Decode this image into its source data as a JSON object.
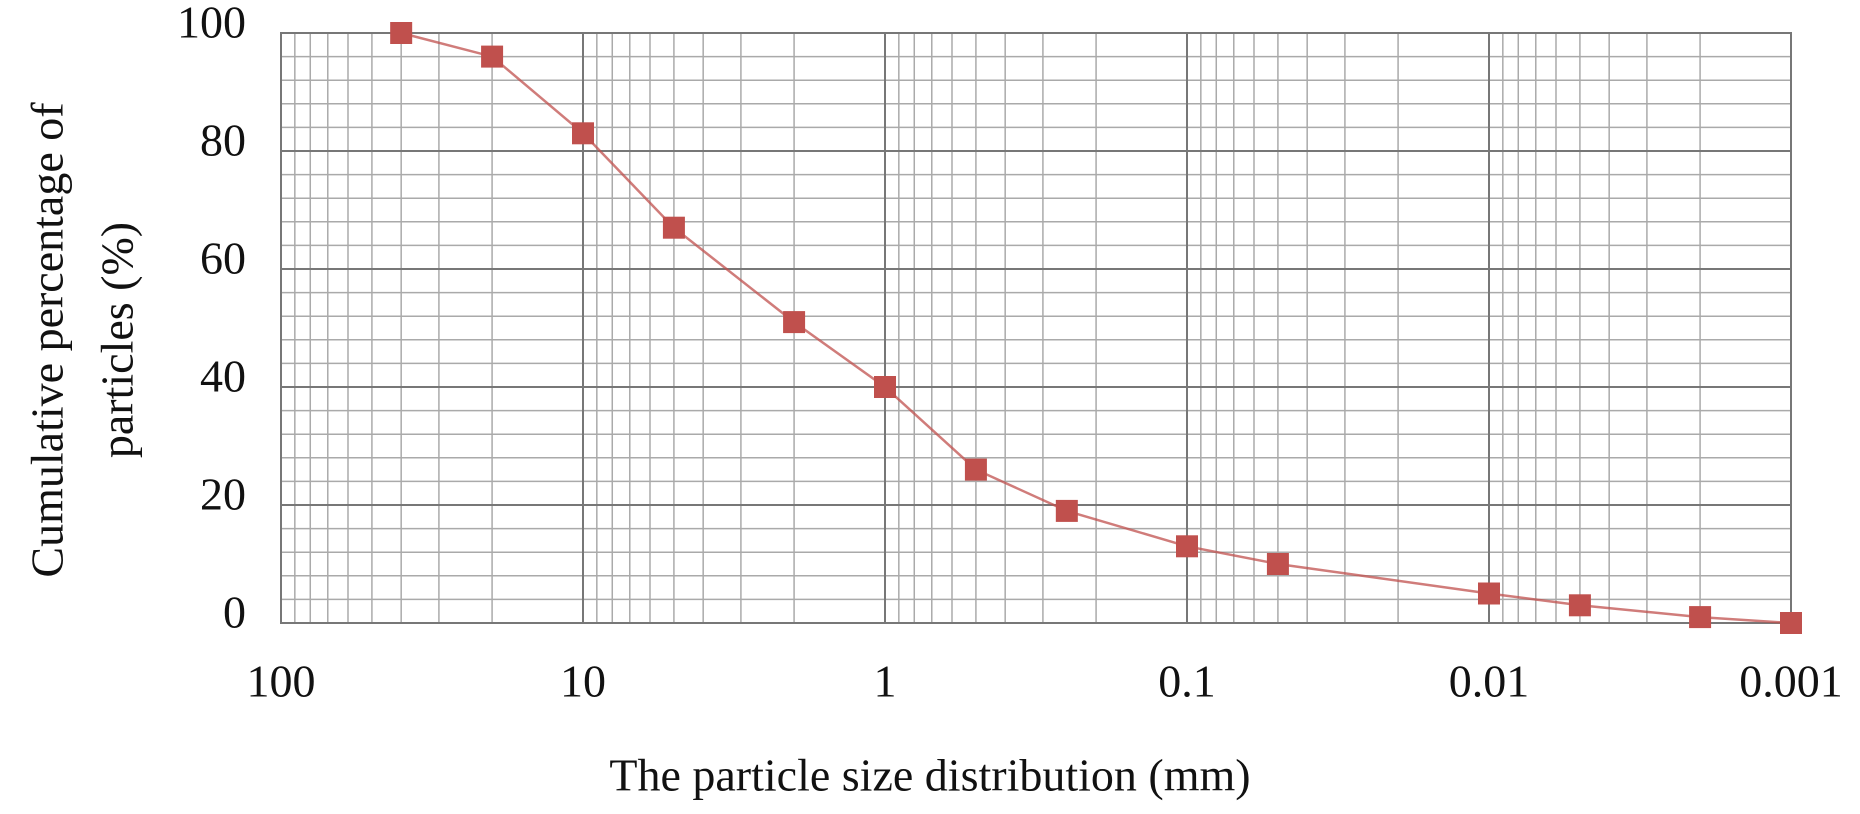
{
  "chart_data": {
    "type": "line",
    "xlabel": "The particle size distribution (mm)",
    "ylabel": [
      "Cumulative percentage of",
      "particles (%)"
    ],
    "x": [
      40,
      20,
      10,
      5,
      2,
      1,
      0.5,
      0.25,
      0.1,
      0.05,
      0.01,
      0.005,
      0.002,
      0.001
    ],
    "series": [
      {
        "color": "#c0504d",
        "values": [
          100,
          96,
          83,
          67,
          51,
          40,
          26,
          19,
          13,
          10,
          5,
          3,
          1,
          0
        ]
      }
    ],
    "xscale": "log",
    "xlim": [
      100,
      0.001
    ],
    "xticks": [
      100,
      10,
      1,
      0.1,
      0.01,
      0.001
    ],
    "ylim": [
      0,
      100
    ],
    "yticks": [
      0,
      20,
      40,
      60,
      80,
      100
    ],
    "grid": true
  }
}
